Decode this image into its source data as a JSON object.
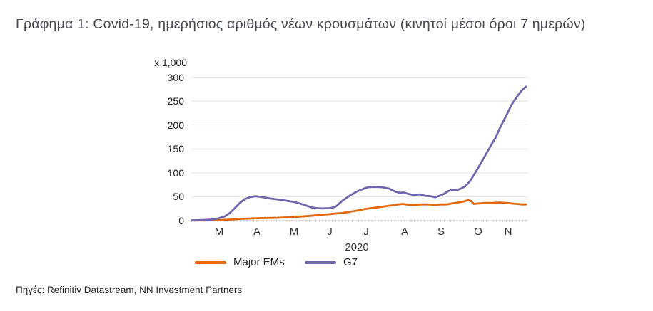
{
  "title": "Γράφημα 1:  Covid-19, ημερήσιος αριθμός νέων κρουσμάτων (κινητοί μέσοι όροι 7 ημερών)",
  "source": "Πηγές: Refinitiv Datastream, NN Investment Partners",
  "chart_data": {
    "type": "line",
    "unit_label": "x 1,000",
    "grid": true,
    "legend_position": "bottom",
    "y_axis": {
      "ticks": [
        0,
        50,
        100,
        150,
        200,
        250,
        300
      ],
      "range": [
        0,
        300
      ]
    },
    "x_axis": {
      "tick_labels": [
        "M",
        "A",
        "M",
        "J",
        "J",
        "A",
        "S",
        "O",
        "N"
      ],
      "year_label": "2020"
    },
    "colors": {
      "major_ems": "#e2690f",
      "g7": "#6f67ae",
      "gridline": "#e4e4e4",
      "axis": "#c9c9c9"
    },
    "series": [
      {
        "name": "Major EMs",
        "color": "#e2690f",
        "points": [
          [
            0.0,
            0.3
          ],
          [
            0.047,
            0.6
          ],
          [
            0.083,
            1
          ],
          [
            0.111,
            2
          ],
          [
            0.143,
            3.5
          ],
          [
            0.175,
            4.5
          ],
          [
            0.196,
            5
          ],
          [
            0.228,
            5.5
          ],
          [
            0.26,
            6
          ],
          [
            0.292,
            7
          ],
          [
            0.324,
            8.5
          ],
          [
            0.356,
            10
          ],
          [
            0.388,
            12
          ],
          [
            0.414,
            13.5
          ],
          [
            0.435,
            15
          ],
          [
            0.452,
            16
          ],
          [
            0.473,
            18.5
          ],
          [
            0.495,
            21
          ],
          [
            0.516,
            24
          ],
          [
            0.537,
            26
          ],
          [
            0.559,
            28
          ],
          [
            0.58,
            30
          ],
          [
            0.601,
            32
          ],
          [
            0.618,
            34
          ],
          [
            0.633,
            35
          ],
          [
            0.648,
            33
          ],
          [
            0.665,
            33
          ],
          [
            0.687,
            34
          ],
          [
            0.708,
            34
          ],
          [
            0.729,
            33
          ],
          [
            0.746,
            34
          ],
          [
            0.763,
            34
          ],
          [
            0.78,
            36
          ],
          [
            0.797,
            38
          ],
          [
            0.814,
            40
          ],
          [
            0.827,
            43
          ],
          [
            0.836,
            41
          ],
          [
            0.844,
            35
          ],
          [
            0.861,
            36
          ],
          [
            0.878,
            37
          ],
          [
            0.9,
            37
          ],
          [
            0.921,
            38
          ],
          [
            0.938,
            37
          ],
          [
            0.955,
            36
          ],
          [
            0.972,
            35
          ],
          [
            0.987,
            34
          ],
          [
            1.0,
            34
          ]
        ]
      },
      {
        "name": "G7",
        "color": "#6f67ae",
        "points": [
          [
            0.0,
            0.5
          ],
          [
            0.026,
            1
          ],
          [
            0.058,
            2
          ],
          [
            0.083,
            5
          ],
          [
            0.1,
            9
          ],
          [
            0.115,
            16
          ],
          [
            0.13,
            26
          ],
          [
            0.145,
            37
          ],
          [
            0.16,
            45
          ],
          [
            0.175,
            49
          ],
          [
            0.19,
            51
          ],
          [
            0.205,
            50
          ],
          [
            0.222,
            48
          ],
          [
            0.239,
            46
          ],
          [
            0.26,
            44
          ],
          [
            0.281,
            42
          ],
          [
            0.307,
            39
          ],
          [
            0.324,
            36
          ],
          [
            0.341,
            32
          ],
          [
            0.358,
            28
          ],
          [
            0.375,
            26
          ],
          [
            0.392,
            25.5
          ],
          [
            0.414,
            26
          ],
          [
            0.431,
            29
          ],
          [
            0.452,
            42
          ],
          [
            0.473,
            52
          ],
          [
            0.495,
            61
          ],
          [
            0.516,
            67
          ],
          [
            0.529,
            70
          ],
          [
            0.548,
            70.5
          ],
          [
            0.569,
            70
          ],
          [
            0.591,
            67
          ],
          [
            0.608,
            61
          ],
          [
            0.623,
            58
          ],
          [
            0.635,
            59
          ],
          [
            0.648,
            56
          ],
          [
            0.665,
            53.5
          ],
          [
            0.682,
            55
          ],
          [
            0.699,
            52
          ],
          [
            0.716,
            51
          ],
          [
            0.729,
            49
          ],
          [
            0.742,
            52
          ],
          [
            0.755,
            56
          ],
          [
            0.768,
            62
          ],
          [
            0.78,
            64
          ],
          [
            0.793,
            64
          ],
          [
            0.806,
            67
          ],
          [
            0.819,
            72
          ],
          [
            0.832,
            82
          ],
          [
            0.844,
            95
          ],
          [
            0.857,
            110
          ],
          [
            0.87,
            126
          ],
          [
            0.883,
            142
          ],
          [
            0.896,
            158
          ],
          [
            0.908,
            172
          ],
          [
            0.921,
            192
          ],
          [
            0.934,
            210
          ],
          [
            0.945,
            225
          ],
          [
            0.955,
            240
          ],
          [
            0.966,
            252
          ],
          [
            0.977,
            263
          ],
          [
            0.987,
            272
          ],
          [
            0.996,
            278
          ],
          [
            1.0,
            280
          ]
        ]
      }
    ]
  }
}
